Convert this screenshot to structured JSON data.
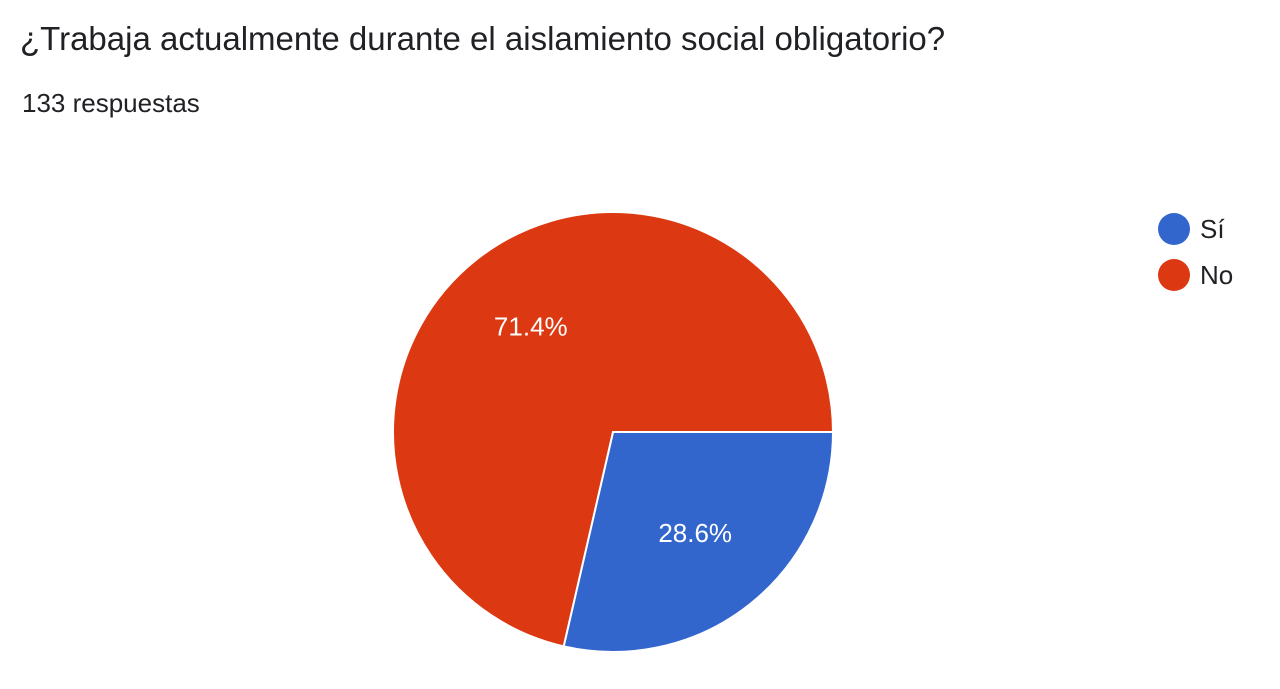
{
  "header": {
    "title": "¿Trabaja actualmente durante el aislamiento social obligatorio?",
    "subtitle": "133 respuestas"
  },
  "chart_data": {
    "type": "pie",
    "title": "¿Trabaja actualmente durante el aislamiento social obligatorio?",
    "subtitle": "133 respuestas",
    "legend_position": "right",
    "slices": [
      {
        "label": "Sí",
        "value": 28.6,
        "display": "28.6%",
        "color": "#3366cc"
      },
      {
        "label": "No",
        "value": 71.4,
        "display": "71.4%",
        "color": "#dc3912"
      }
    ]
  }
}
